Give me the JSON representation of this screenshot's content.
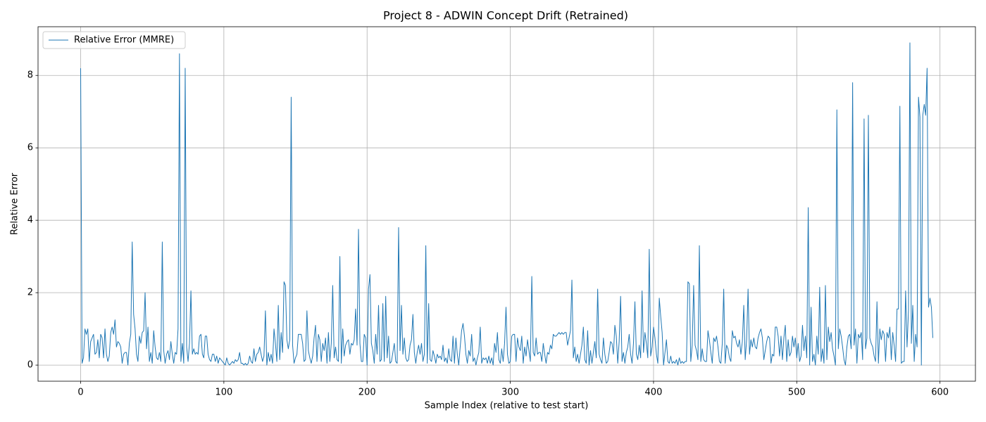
{
  "chart_data": {
    "type": "line",
    "title": "Project 8 - ADWIN Concept Drift (Retrained)",
    "xlabel": "Sample Index (relative to test start)",
    "ylabel": "Relative Error",
    "xlim": [
      -29.75,
      624.75
    ],
    "xticks": [
      0,
      100,
      200,
      300,
      400,
      500,
      600
    ],
    "ylim": [
      -0.445,
      9.345
    ],
    "yticks": [
      0,
      2,
      4,
      6,
      8
    ],
    "grid": true,
    "legend": "upper left",
    "x": [
      0,
      1,
      2,
      3,
      4,
      5,
      6,
      7,
      8,
      9,
      10,
      11,
      12,
      13,
      14,
      15,
      16,
      17,
      18,
      19,
      20,
      21,
      22,
      23,
      24,
      25,
      26,
      27,
      28,
      29,
      30,
      31,
      32,
      33,
      34,
      35,
      36,
      37,
      38,
      39,
      40,
      41,
      42,
      43,
      44,
      45,
      46,
      47,
      48,
      49,
      50,
      51,
      52,
      53,
      54,
      55,
      56,
      57,
      58,
      59,
      60,
      61,
      62,
      63,
      64,
      65,
      66,
      67,
      68,
      69,
      70,
      71,
      72,
      73,
      74,
      75,
      76,
      77,
      78,
      79,
      80,
      81,
      82,
      83,
      84,
      85,
      86,
      87,
      88,
      89,
      90,
      91,
      92,
      93,
      94,
      95,
      96,
      97,
      98,
      99,
      100,
      101,
      102,
      103,
      104,
      105,
      106,
      107,
      108,
      109,
      110,
      111,
      112,
      113,
      114,
      115,
      116,
      117,
      118,
      119,
      120,
      121,
      122,
      123,
      124,
      125,
      126,
      127,
      128,
      129,
      130,
      131,
      132,
      133,
      134,
      135,
      136,
      137,
      138,
      139,
      140,
      141,
      142,
      143,
      144,
      145,
      146,
      147,
      148,
      149,
      150,
      151,
      152,
      153,
      154,
      155,
      156,
      157,
      158,
      159,
      160,
      161,
      162,
      163,
      164,
      165,
      166,
      167,
      168,
      169,
      170,
      171,
      172,
      173,
      174,
      175,
      176,
      177,
      178,
      179,
      180,
      181,
      182,
      183,
      184,
      185,
      186,
      187,
      188,
      189,
      190,
      191,
      192,
      193,
      194,
      195,
      196,
      197,
      198,
      199,
      200,
      201,
      202,
      203,
      204,
      205,
      206,
      207,
      208,
      209,
      210,
      211,
      212,
      213,
      214,
      215,
      216,
      217,
      218,
      219,
      220,
      221,
      222,
      223,
      224,
      225,
      226,
      227,
      228,
      229,
      230,
      231,
      232,
      233,
      234,
      235,
      236,
      237,
      238,
      239,
      240,
      241,
      242,
      243,
      244,
      245,
      246,
      247,
      248,
      249,
      250,
      251,
      252,
      253,
      254,
      255,
      256,
      257,
      258,
      259,
      260,
      261,
      262,
      263,
      264,
      265,
      266,
      267,
      268,
      269,
      270,
      271,
      272,
      273,
      274,
      275,
      276,
      277,
      278,
      279,
      280,
      281,
      282,
      283,
      284,
      285,
      286,
      287,
      288,
      289,
      290,
      291,
      292,
      293,
      294,
      295,
      296,
      297,
      298,
      299,
      300,
      301,
      302,
      303,
      304,
      305,
      306,
      307,
      308,
      309,
      310,
      311,
      312,
      313,
      314,
      315,
      316,
      317,
      318,
      319,
      320,
      321,
      322,
      323,
      324,
      325,
      326,
      327,
      328,
      329,
      330,
      331,
      332,
      333,
      334,
      335,
      336,
      337,
      338,
      339,
      340,
      341,
      342,
      343,
      344,
      345,
      346,
      347,
      348,
      349,
      350,
      351,
      352,
      353,
      354,
      355,
      356,
      357,
      358,
      359,
      360,
      361,
      362,
      363,
      364,
      365,
      366,
      367,
      368,
      369,
      370,
      371,
      372,
      373,
      374,
      375,
      376,
      377,
      378,
      379,
      380,
      381,
      382,
      383,
      384,
      385,
      386,
      387,
      388,
      389,
      390,
      391,
      392,
      393,
      394,
      395,
      396,
      397,
      398,
      399,
      400,
      401,
      402,
      403,
      404,
      405,
      406,
      407,
      408,
      409,
      410,
      411,
      412,
      413,
      414,
      415,
      416,
      417,
      418,
      419,
      420,
      421,
      422,
      423,
      424,
      425,
      426,
      427,
      428,
      429,
      430,
      431,
      432,
      433,
      434,
      435,
      436,
      437,
      438,
      439,
      440,
      441,
      442,
      443,
      444,
      445,
      446,
      447,
      448,
      449,
      450,
      451,
      452,
      453,
      454,
      455,
      456,
      457,
      458,
      459,
      460,
      461,
      462,
      463,
      464,
      465,
      466,
      467,
      468,
      469,
      470,
      471,
      472,
      473,
      474,
      475,
      476,
      477,
      478,
      479,
      480,
      481,
      482,
      483,
      484,
      485,
      486,
      487,
      488,
      489,
      490,
      491,
      492,
      493,
      494,
      495,
      496,
      497,
      498,
      499,
      500,
      501,
      502,
      503,
      504,
      505,
      506,
      507,
      508,
      509,
      510,
      511,
      512,
      513,
      514,
      515,
      516,
      517,
      518,
      519,
      520,
      521,
      522,
      523,
      524,
      525,
      526,
      527,
      528,
      529,
      530,
      531,
      532,
      533,
      534,
      535,
      536,
      537,
      538,
      539,
      540,
      541,
      542,
      543,
      544,
      545,
      546,
      547,
      548,
      549,
      550,
      551,
      552,
      553,
      554,
      555,
      556,
      557,
      558,
      559,
      560,
      561,
      562,
      563,
      564,
      565,
      566,
      567,
      568,
      569,
      570,
      571,
      572,
      573,
      574,
      575,
      576,
      577,
      578,
      579,
      580,
      581,
      582,
      583,
      584,
      585,
      586,
      587,
      588,
      589,
      590,
      591,
      592,
      593,
      594,
      595
    ],
    "series": [
      {
        "name": "Relative Error (MMRE)",
        "color": "#1f77b4",
        "values": [
          8.2,
          0.05,
          0.2,
          1.0,
          0.85,
          1.0,
          0.1,
          0.65,
          0.75,
          0.85,
          0.3,
          0.35,
          0.7,
          0.2,
          0.85,
          0.75,
          0.2,
          1.0,
          0.3,
          0.1,
          0.25,
          0.9,
          1.05,
          0.85,
          1.25,
          0.5,
          0.65,
          0.6,
          0.5,
          0.05,
          0.3,
          0.35,
          0.35,
          0.0,
          0.6,
          0.85,
          3.4,
          1.4,
          1.0,
          0.3,
          0.1,
          0.8,
          0.6,
          0.9,
          0.95,
          2.0,
          0.45,
          1.05,
          0.1,
          0.35,
          0.05,
          0.95,
          0.5,
          0.2,
          0.15,
          0.35,
          0.1,
          3.4,
          0.4,
          0.05,
          0.3,
          0.4,
          0.15,
          0.65,
          0.3,
          0.05,
          0.35,
          0.3,
          1.0,
          8.6,
          0.1,
          0.6,
          0.05,
          8.2,
          0.5,
          0.1,
          0.6,
          2.05,
          0.3,
          0.45,
          0.3,
          0.35,
          0.3,
          0.8,
          0.85,
          0.3,
          0.2,
          0.8,
          0.8,
          0.3,
          0.15,
          0.1,
          0.3,
          0.3,
          0.1,
          0.25,
          0.05,
          0.2,
          0.15,
          0.1,
          0.05,
          0.0,
          0.2,
          0.05,
          0.0,
          0.05,
          0.1,
          0.05,
          0.15,
          0.1,
          0.15,
          0.35,
          0.05,
          0.05,
          0.0,
          0.05,
          0.0,
          0.05,
          0.25,
          0.1,
          0.05,
          0.45,
          0.1,
          0.3,
          0.35,
          0.5,
          0.3,
          0.1,
          0.25,
          1.5,
          0.0,
          0.35,
          0.1,
          0.3,
          0.05,
          1.0,
          0.6,
          0.1,
          1.65,
          0.15,
          0.9,
          0.35,
          2.3,
          2.2,
          0.7,
          0.45,
          0.7,
          7.4,
          0.55,
          0.05,
          0.2,
          0.3,
          0.85,
          0.85,
          0.85,
          0.6,
          0.1,
          0.15,
          1.5,
          0.4,
          0.2,
          0.05,
          0.25,
          0.75,
          1.1,
          0.1,
          0.85,
          0.7,
          0.1,
          0.6,
          0.4,
          0.75,
          0.05,
          0.9,
          0.1,
          0.6,
          2.2,
          0.2,
          0.5,
          0.15,
          0.1,
          3.0,
          0.05,
          1.0,
          0.25,
          0.55,
          0.65,
          0.7,
          0.3,
          0.6,
          0.55,
          0.7,
          1.55,
          0.55,
          3.75,
          0.6,
          0.1,
          0.1,
          0.85,
          0.75,
          0.0,
          2.1,
          2.5,
          0.6,
          0.4,
          0.05,
          0.85,
          0.3,
          1.65,
          0.1,
          0.15,
          1.7,
          0.1,
          1.9,
          0.2,
          0.8,
          0.05,
          0.1,
          0.35,
          0.6,
          0.1,
          0.05,
          3.8,
          0.4,
          1.65,
          0.3,
          0.75,
          0.2,
          0.1,
          0.15,
          0.55,
          0.7,
          1.4,
          0.35,
          0.05,
          0.35,
          0.55,
          0.3,
          0.6,
          0.1,
          0.3,
          3.3,
          0.05,
          1.7,
          0.15,
          0.1,
          0.4,
          0.25,
          0.05,
          0.3,
          0.2,
          0.25,
          0.15,
          0.55,
          0.1,
          0.2,
          0.05,
          0.45,
          0.15,
          0.1,
          0.8,
          0.05,
          0.75,
          0.3,
          0.0,
          0.5,
          0.95,
          1.15,
          0.8,
          0.3,
          0.05,
          0.4,
          0.25,
          0.85,
          0.1,
          0.2,
          0.0,
          0.2,
          0.35,
          1.05,
          0.05,
          0.2,
          0.15,
          0.2,
          0.05,
          0.25,
          0.05,
          0.2,
          0.0,
          0.6,
          0.35,
          0.9,
          0.15,
          0.05,
          0.45,
          0.1,
          0.6,
          1.6,
          0.3,
          0.05,
          0.1,
          0.8,
          0.85,
          0.85,
          0.1,
          0.75,
          0.5,
          0.4,
          0.8,
          0.05,
          0.5,
          0.25,
          0.7,
          0.4,
          0.1,
          2.45,
          0.35,
          0.25,
          0.75,
          0.3,
          0.35,
          0.35,
          0.1,
          0.6,
          0.3,
          0.05,
          0.35,
          0.3,
          0.55,
          0.45,
          0.85,
          0.8,
          0.8,
          0.85,
          0.9,
          0.85,
          0.9,
          0.85,
          0.9,
          0.9,
          0.55,
          0.75,
          0.95,
          2.35,
          0.2,
          0.5,
          0.1,
          0.3,
          0.05,
          0.3,
          0.55,
          1.05,
          0.15,
          0.05,
          0.95,
          0.0,
          0.4,
          0.05,
          0.35,
          0.65,
          0.2,
          2.1,
          0.3,
          0.15,
          0.05,
          0.75,
          0.3,
          0.05,
          0.1,
          0.35,
          0.65,
          0.6,
          0.3,
          1.1,
          0.8,
          0.05,
          0.65,
          1.9,
          0.1,
          0.35,
          0.05,
          0.35,
          0.5,
          0.85,
          0.3,
          0.05,
          0.6,
          1.75,
          0.3,
          0.15,
          0.55,
          0.2,
          2.05,
          0.35,
          0.9,
          0.6,
          0.2,
          3.2,
          0.25,
          0.5,
          1.05,
          0.75,
          0.3,
          0.05,
          1.85,
          1.35,
          0.9,
          0.0,
          0.35,
          0.7,
          0.1,
          0.05,
          0.25,
          0.05,
          0.1,
          0.05,
          0.15,
          0.0,
          0.2,
          0.05,
          0.1,
          0.05,
          0.1,
          0.1,
          2.3,
          2.25,
          0.1,
          0.55,
          2.2,
          0.55,
          0.4,
          0.15,
          3.3,
          0.1,
          0.45,
          0.15,
          0.1,
          0.1,
          0.95,
          0.7,
          0.35,
          0.05,
          0.75,
          0.65,
          0.8,
          0.5,
          0.1,
          0.05,
          0.6,
          2.1,
          0.05,
          0.55,
          0.45,
          0.2,
          0.1,
          0.95,
          0.75,
          0.8,
          0.6,
          0.5,
          0.7,
          0.3,
          0.65,
          1.65,
          0.15,
          0.7,
          2.1,
          0.3,
          0.7,
          0.5,
          0.75,
          0.5,
          0.45,
          0.75,
          0.9,
          1.0,
          0.75,
          0.15,
          0.4,
          0.65,
          0.8,
          0.75,
          0.05,
          0.3,
          0.25,
          1.05,
          1.05,
          0.8,
          0.25,
          0.8,
          0.15,
          0.75,
          1.1,
          0.1,
          0.7,
          0.25,
          0.35,
          0.8,
          0.5,
          0.75,
          0.2,
          0.6,
          0.1,
          0.25,
          1.1,
          0.4,
          0.8,
          0.2,
          4.35,
          0.0,
          1.6,
          0.1,
          0.3,
          0.0,
          0.8,
          0.3,
          2.15,
          0.1,
          0.45,
          0.05,
          2.2,
          0.15,
          1.05,
          0.65,
          0.9,
          0.45,
          0.25,
          0.0,
          7.05,
          0.45,
          1.0,
          0.8,
          0.5,
          0.15,
          0.0,
          0.5,
          0.8,
          0.85,
          0.45,
          7.8,
          0.55,
          1.0,
          0.05,
          0.85,
          0.75,
          0.9,
          0.15,
          6.8,
          0.45,
          0.75,
          6.9,
          0.75,
          0.6,
          0.5,
          0.25,
          0.1,
          1.75,
          0.05,
          1.0,
          0.7,
          0.95,
          0.85,
          0.1,
          0.9,
          0.75,
          1.05,
          0.15,
          0.9,
          0.55,
          0.1,
          1.55,
          1.55,
          7.15,
          0.05,
          0.1,
          0.1,
          2.05,
          0.5,
          1.5,
          8.9,
          0.6,
          1.65,
          0.1,
          0.85,
          0.5,
          7.4,
          6.85,
          0.0,
          6.9,
          7.2,
          6.9,
          8.2,
          1.6,
          1.85,
          1.6,
          0.75
        ]
      }
    ]
  }
}
